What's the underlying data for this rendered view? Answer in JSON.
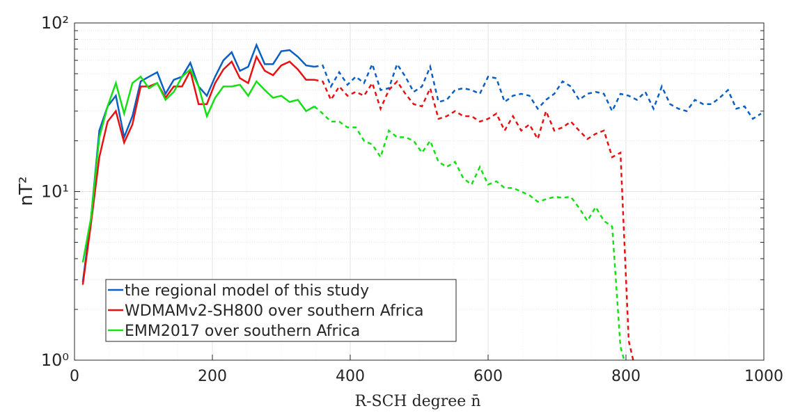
{
  "chart_data": {
    "type": "line",
    "xlabel": "R-SCH degree n̄",
    "ylabel": "nT²",
    "x": [
      12,
      24,
      36,
      48,
      60,
      72,
      84,
      96,
      108,
      120,
      132,
      144,
      156,
      168,
      180,
      192,
      204,
      216,
      228,
      240,
      252,
      264,
      276,
      288,
      300,
      312,
      324,
      336,
      348,
      360,
      372,
      384,
      396,
      408,
      420,
      432,
      444,
      456,
      468,
      480,
      492,
      504,
      516,
      528,
      540,
      552,
      564,
      576,
      588,
      600,
      612,
      624,
      636,
      648,
      660,
      672,
      684,
      696,
      708,
      720,
      732,
      744,
      756,
      768,
      780,
      792,
      804,
      816,
      828,
      840,
      852,
      864,
      876,
      888,
      900,
      912,
      924,
      936,
      948,
      960,
      972,
      984,
      996
    ],
    "dashed_from": 348,
    "series": [
      {
        "name": "the regional model of this study",
        "color": "#0a5fc4",
        "values": [
          2.9,
          7,
          23,
          32,
          37,
          21,
          28,
          45,
          48,
          51,
          38,
          46,
          48,
          58,
          42,
          37,
          48,
          60,
          67,
          52,
          55,
          74,
          57,
          57,
          68,
          69,
          63,
          56,
          55,
          56,
          42,
          51,
          43,
          48,
          44,
          57,
          40,
          41,
          57,
          48,
          39,
          42,
          55,
          34,
          35,
          40,
          41,
          40,
          38,
          48,
          47,
          34,
          37,
          38,
          37,
          31,
          35,
          38,
          45,
          42,
          35,
          38,
          39,
          38,
          30,
          38,
          37,
          35,
          39,
          31,
          42,
          33,
          31,
          30,
          35,
          33,
          33,
          36,
          40,
          31,
          32,
          27,
          29
        ]
      },
      {
        "name": "WDMAMv2-SH800 over southern Africa",
        "color": "#e81010",
        "values": [
          2.8,
          6.5,
          16,
          26,
          30,
          19.5,
          25,
          42,
          42,
          44,
          36,
          42,
          42,
          52,
          33,
          33,
          44,
          53,
          59,
          47,
          44,
          63,
          52,
          49,
          56,
          59,
          53,
          46,
          46,
          45,
          35,
          42,
          37,
          39,
          37,
          44,
          31,
          40,
          45,
          38,
          33,
          32,
          41,
          27,
          28,
          30,
          28,
          28,
          26,
          27,
          29,
          23,
          28,
          23,
          25,
          20.5,
          30,
          23,
          24,
          26,
          23,
          20.5,
          22,
          23,
          16,
          17,
          1.3,
          0.8,
          null,
          null,
          null,
          null,
          null,
          null,
          null,
          null,
          null,
          null,
          null,
          null,
          null,
          null,
          null
        ]
      },
      {
        "name": "EMM2017 over southern Africa",
        "color": "#14e014",
        "values": [
          3.8,
          7,
          21,
          32,
          44,
          29,
          44,
          48,
          41,
          44,
          35,
          39,
          48,
          53,
          42,
          28,
          36,
          42,
          42,
          43,
          37,
          45,
          40,
          36,
          37,
          34,
          35,
          30,
          32,
          29,
          26,
          26,
          24,
          24,
          20,
          19,
          16,
          23,
          21,
          21,
          20,
          17,
          20,
          15,
          14,
          15,
          12,
          11,
          14,
          11,
          11.5,
          10.5,
          10.5,
          10,
          9.5,
          8.7,
          9,
          9.3,
          9.2,
          9.3,
          8,
          6.7,
          8.1,
          6.7,
          6.2,
          1.2,
          0.8,
          null,
          null,
          null,
          null,
          null,
          null,
          null,
          null,
          null,
          null,
          null,
          null,
          null,
          null,
          null,
          null
        ]
      }
    ],
    "xlim": [
      0,
      1000
    ],
    "xticks": [
      0,
      200,
      400,
      600,
      800,
      1000
    ],
    "ylim": [
      1,
      100
    ],
    "yticks": [
      {
        "value": 1,
        "label": "10⁰"
      },
      {
        "value": 10,
        "label": "10¹"
      },
      {
        "value": 100,
        "label": "10²"
      }
    ],
    "ylog": true,
    "grid": true,
    "minor_grid": true,
    "legend": "lower left"
  }
}
